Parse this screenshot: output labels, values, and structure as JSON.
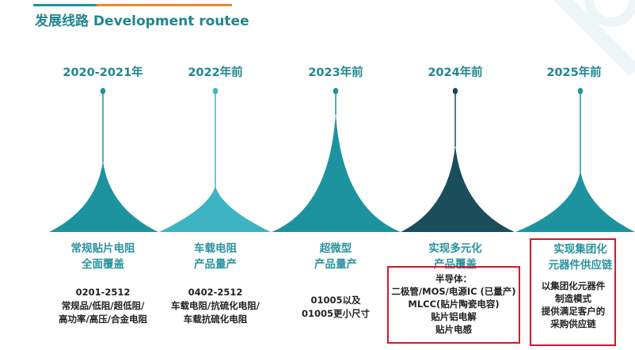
{
  "header": {
    "title_cn": "发展线路",
    "title_en": "Development routee"
  },
  "colors": {
    "teal": "#1e93a0",
    "light_teal": "#3db3c4",
    "dark_teal": "#1a4e5a",
    "title": "#21868f",
    "highlight_border": "#d6162a",
    "accent_orange": "#e88a2d"
  },
  "milestones": [
    {
      "year": "2020-2021年",
      "head": [
        "常规贴片电阻",
        "全面覆盖"
      ],
      "desc": [
        "0201-2512",
        "常规品/低阻/超低阻/",
        "高功率/高压/合金电阻"
      ],
      "color": "#1e93a0"
    },
    {
      "year": "2022年前",
      "head": [
        "车载电阻",
        "产品量产"
      ],
      "desc": [
        "0402-2512",
        "车载电阻/抗硫化电阻/",
        "车载抗硫化电阻"
      ],
      "color": "#3db3c4"
    },
    {
      "year": "2023年前",
      "head": [
        "超微型",
        "产品量产"
      ],
      "desc": [
        "01005以及",
        "01005更小尺寸"
      ],
      "color": "#1e93a0"
    },
    {
      "year": "2024年前",
      "head": [
        "实现多元化",
        "产品覆盖"
      ],
      "desc": [
        "半导体：",
        "二极管/MOS/电源IC (已量产)",
        "MLCC(贴片陶瓷电容)",
        "贴片铝电解",
        "贴片电感"
      ],
      "color": "#1a4e5a",
      "highlighted": true
    },
    {
      "year": "2025年前",
      "head": [
        "实现集团化",
        "元器件供应链"
      ],
      "desc": [
        "以集团化元器件",
        "制造模式",
        "提供满足客户的",
        "采购供应链"
      ],
      "color": "#1e93a0",
      "highlighted": true
    }
  ]
}
